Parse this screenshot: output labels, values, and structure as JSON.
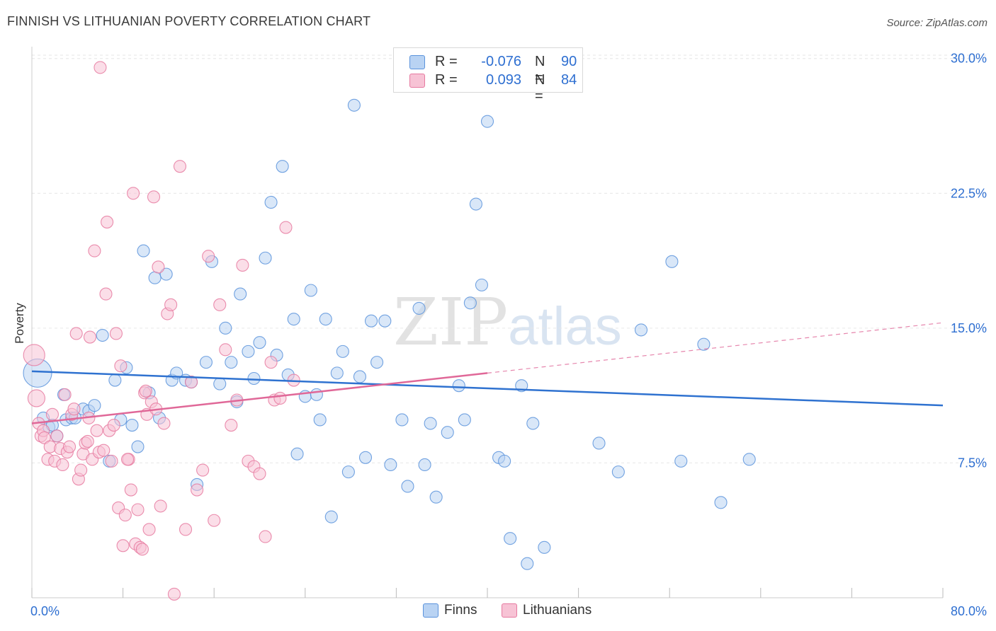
{
  "title": "FINNISH VS LITHUANIAN POVERTY CORRELATION CHART",
  "source": "Source: ZipAtlas.com",
  "watermark": {
    "main": "ZIP",
    "sub": "atlas"
  },
  "colors": {
    "finns": "#5b93dc",
    "finns_fill": "#b9d3f3",
    "lithuanians": "#e67aa0",
    "lithuanians_fill": "#f7c3d5",
    "finns_line": "#2f72d0",
    "lithuanians_line": "#e06898",
    "value_text": "#2e6fd1",
    "grid": "#e6e6e6"
  },
  "legend": {
    "rows": [
      {
        "r_label": "R =",
        "r_value": "-0.076",
        "n_label": "N =",
        "n_value": "90"
      },
      {
        "r_label": "R =",
        "r_value": "0.093",
        "n_label": "N =",
        "n_value": "84"
      }
    ],
    "bottom": [
      {
        "label": "Finns"
      },
      {
        "label": "Lithuanians"
      }
    ]
  },
  "chart_data": {
    "type": "scatter",
    "title": "FINNISH VS LITHUANIAN POVERTY CORRELATION CHART",
    "ylabel": "Poverty",
    "xlabel": "",
    "xlim": [
      0,
      80
    ],
    "ylim": [
      0,
      30.5
    ],
    "x_tick_labels": [
      "0.0%",
      "80.0%"
    ],
    "y_ticks": [
      7.5,
      15.0,
      22.5,
      30.0
    ],
    "y_tick_labels": [
      "7.5%",
      "15.0%",
      "22.5%",
      "30.0%"
    ],
    "grid": "horizontal dashed",
    "legend_position": "top-center",
    "series": [
      {
        "name": "Finns",
        "R": -0.076,
        "N": 90,
        "trend": {
          "x": [
            0,
            80
          ],
          "y": [
            12.6,
            10.7
          ]
        },
        "points": [
          [
            0.5,
            12.5
          ],
          [
            1.0,
            10.0
          ],
          [
            1.5,
            9.5
          ],
          [
            1.8,
            9.6
          ],
          [
            2.2,
            9.0
          ],
          [
            2.8,
            11.3
          ],
          [
            3.0,
            9.9
          ],
          [
            3.5,
            10.0
          ],
          [
            3.8,
            10.0
          ],
          [
            4.5,
            10.5
          ],
          [
            5.0,
            10.4
          ],
          [
            5.5,
            10.7
          ],
          [
            6.2,
            14.6
          ],
          [
            6.8,
            7.6
          ],
          [
            7.3,
            12.1
          ],
          [
            7.8,
            9.9
          ],
          [
            8.3,
            12.8
          ],
          [
            8.8,
            9.6
          ],
          [
            9.3,
            8.4
          ],
          [
            9.8,
            19.3
          ],
          [
            10.3,
            11.4
          ],
          [
            10.8,
            17.8
          ],
          [
            11.2,
            10.0
          ],
          [
            11.8,
            18.0
          ],
          [
            12.3,
            12.1
          ],
          [
            12.7,
            12.5
          ],
          [
            13.5,
            12.1
          ],
          [
            14.0,
            12.0
          ],
          [
            14.5,
            6.3
          ],
          [
            15.3,
            13.1
          ],
          [
            15.8,
            18.7
          ],
          [
            16.5,
            11.9
          ],
          [
            17.0,
            15.0
          ],
          [
            17.5,
            13.1
          ],
          [
            18.0,
            10.9
          ],
          [
            18.3,
            16.9
          ],
          [
            19.0,
            13.7
          ],
          [
            19.5,
            12.2
          ],
          [
            20.0,
            14.2
          ],
          [
            20.5,
            18.9
          ],
          [
            21.0,
            22.0
          ],
          [
            21.5,
            13.5
          ],
          [
            22.0,
            24.0
          ],
          [
            22.5,
            12.4
          ],
          [
            23.0,
            15.5
          ],
          [
            23.3,
            8.0
          ],
          [
            24.0,
            11.2
          ],
          [
            24.5,
            17.1
          ],
          [
            25.0,
            11.3
          ],
          [
            25.3,
            9.9
          ],
          [
            25.8,
            15.5
          ],
          [
            26.3,
            4.5
          ],
          [
            26.8,
            12.5
          ],
          [
            27.3,
            13.7
          ],
          [
            27.8,
            7.0
          ],
          [
            28.3,
            27.4
          ],
          [
            28.8,
            12.3
          ],
          [
            29.3,
            7.8
          ],
          [
            29.8,
            15.4
          ],
          [
            30.3,
            13.1
          ],
          [
            31.0,
            15.4
          ],
          [
            31.5,
            7.4
          ],
          [
            32.5,
            9.9
          ],
          [
            33.0,
            6.2
          ],
          [
            34.0,
            16.1
          ],
          [
            34.5,
            7.4
          ],
          [
            35.0,
            9.7
          ],
          [
            35.5,
            5.6
          ],
          [
            36.5,
            9.2
          ],
          [
            37.5,
            11.8
          ],
          [
            38.0,
            9.9
          ],
          [
            38.5,
            16.4
          ],
          [
            39.0,
            21.9
          ],
          [
            39.5,
            17.4
          ],
          [
            40.0,
            26.5
          ],
          [
            41.0,
            7.8
          ],
          [
            41.5,
            7.6
          ],
          [
            42.0,
            3.3
          ],
          [
            43.0,
            11.8
          ],
          [
            43.5,
            1.9
          ],
          [
            44.0,
            9.7
          ],
          [
            45.0,
            2.8
          ],
          [
            49.8,
            8.6
          ],
          [
            51.5,
            7.0
          ],
          [
            53.5,
            14.9
          ],
          [
            56.2,
            18.7
          ],
          [
            57.0,
            7.6
          ],
          [
            59.0,
            14.1
          ],
          [
            60.5,
            5.3
          ],
          [
            63.0,
            7.7
          ]
        ]
      },
      {
        "name": "Lithuanians",
        "R": 0.093,
        "N": 84,
        "trend": {
          "x": [
            0,
            40
          ],
          "y": [
            9.7,
            12.5
          ]
        },
        "trend_extension": {
          "x": [
            40,
            80
          ],
          "y": [
            12.5,
            15.3
          ]
        },
        "points": [
          [
            0.2,
            13.5
          ],
          [
            0.4,
            11.1
          ],
          [
            0.6,
            9.7
          ],
          [
            0.8,
            9.0
          ],
          [
            1.0,
            9.3
          ],
          [
            1.1,
            8.9
          ],
          [
            1.4,
            7.7
          ],
          [
            1.6,
            8.4
          ],
          [
            1.8,
            10.2
          ],
          [
            2.0,
            7.6
          ],
          [
            2.2,
            9.0
          ],
          [
            2.5,
            8.3
          ],
          [
            2.7,
            7.4
          ],
          [
            2.9,
            11.3
          ],
          [
            3.1,
            8.1
          ],
          [
            3.3,
            8.4
          ],
          [
            3.5,
            10.2
          ],
          [
            3.7,
            10.5
          ],
          [
            3.9,
            14.7
          ],
          [
            4.1,
            6.6
          ],
          [
            4.3,
            7.1
          ],
          [
            4.5,
            8.0
          ],
          [
            4.7,
            8.6
          ],
          [
            4.9,
            8.7
          ],
          [
            5.1,
            14.5
          ],
          [
            5.3,
            7.7
          ],
          [
            5.5,
            19.3
          ],
          [
            5.7,
            9.3
          ],
          [
            5.9,
            8.1
          ],
          [
            6.0,
            29.5
          ],
          [
            6.3,
            8.2
          ],
          [
            6.5,
            16.9
          ],
          [
            6.6,
            20.9
          ],
          [
            6.8,
            9.3
          ],
          [
            7.0,
            7.6
          ],
          [
            7.2,
            9.6
          ],
          [
            7.4,
            14.7
          ],
          [
            7.6,
            5.0
          ],
          [
            7.8,
            12.9
          ],
          [
            8.0,
            2.9
          ],
          [
            8.2,
            4.6
          ],
          [
            8.5,
            7.7
          ],
          [
            8.7,
            6.0
          ],
          [
            8.9,
            22.5
          ],
          [
            9.1,
            3.0
          ],
          [
            9.3,
            4.9
          ],
          [
            9.5,
            2.8
          ],
          [
            9.7,
            2.7
          ],
          [
            9.9,
            11.4
          ],
          [
            10.1,
            10.2
          ],
          [
            10.3,
            3.8
          ],
          [
            10.5,
            10.9
          ],
          [
            10.7,
            22.3
          ],
          [
            10.9,
            10.5
          ],
          [
            11.1,
            18.4
          ],
          [
            11.3,
            5.1
          ],
          [
            11.6,
            9.7
          ],
          [
            11.9,
            15.8
          ],
          [
            12.2,
            16.3
          ],
          [
            12.5,
            0.2
          ],
          [
            13.0,
            24.0
          ],
          [
            13.5,
            3.8
          ],
          [
            14.0,
            12.0
          ],
          [
            14.5,
            6.0
          ],
          [
            15.0,
            7.1
          ],
          [
            15.5,
            19.0
          ],
          [
            16.0,
            4.3
          ],
          [
            16.5,
            16.3
          ],
          [
            17.0,
            13.8
          ],
          [
            17.5,
            9.6
          ],
          [
            18.0,
            11.0
          ],
          [
            18.5,
            18.5
          ],
          [
            19.0,
            7.6
          ],
          [
            19.5,
            7.3
          ],
          [
            20.0,
            6.9
          ],
          [
            20.5,
            3.4
          ],
          [
            21.0,
            13.1
          ],
          [
            21.3,
            11.0
          ],
          [
            21.8,
            11.1
          ],
          [
            22.3,
            20.6
          ],
          [
            23.0,
            12.1
          ],
          [
            8.4,
            7.7
          ],
          [
            10.0,
            11.5
          ],
          [
            5.0,
            10.0
          ]
        ]
      }
    ]
  }
}
